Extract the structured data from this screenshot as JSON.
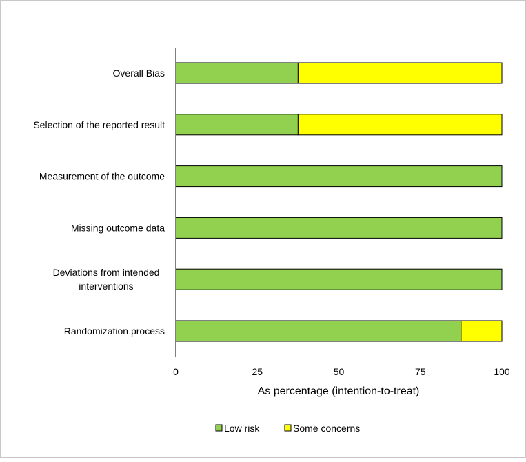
{
  "chart_data": {
    "type": "bar",
    "orientation": "horizontal",
    "stacked": true,
    "title": "",
    "xlabel": "As percentage (intention-to-treat)",
    "ylabel": "",
    "xlim": [
      0,
      100
    ],
    "xticks": [
      "0",
      "25",
      "50",
      "75",
      "100"
    ],
    "xtick_values": [
      0,
      25,
      50,
      75,
      100
    ],
    "grid": false,
    "legend_position": "bottom",
    "categories": [
      "Randomization process",
      "Deviations from intended interventions",
      "Missing outcome data",
      "Measurement of the outcome",
      "Selection of the reported result",
      "Overall Bias"
    ],
    "category_lines": [
      [
        "Randomization process"
      ],
      [
        "Deviations from intended",
        "interventions"
      ],
      [
        "Missing outcome data"
      ],
      [
        "Measurement of the outcome"
      ],
      [
        "Selection of the reported result"
      ],
      [
        "Overall Bias"
      ]
    ],
    "series": [
      {
        "name": "Low risk",
        "color": "#92d050",
        "values": [
          87.5,
          100,
          100,
          100,
          37.5,
          37.5
        ]
      },
      {
        "name": "Some concerns",
        "color": "#ffff00",
        "values": [
          12.5,
          0,
          0,
          0,
          62.5,
          62.5
        ]
      }
    ]
  }
}
